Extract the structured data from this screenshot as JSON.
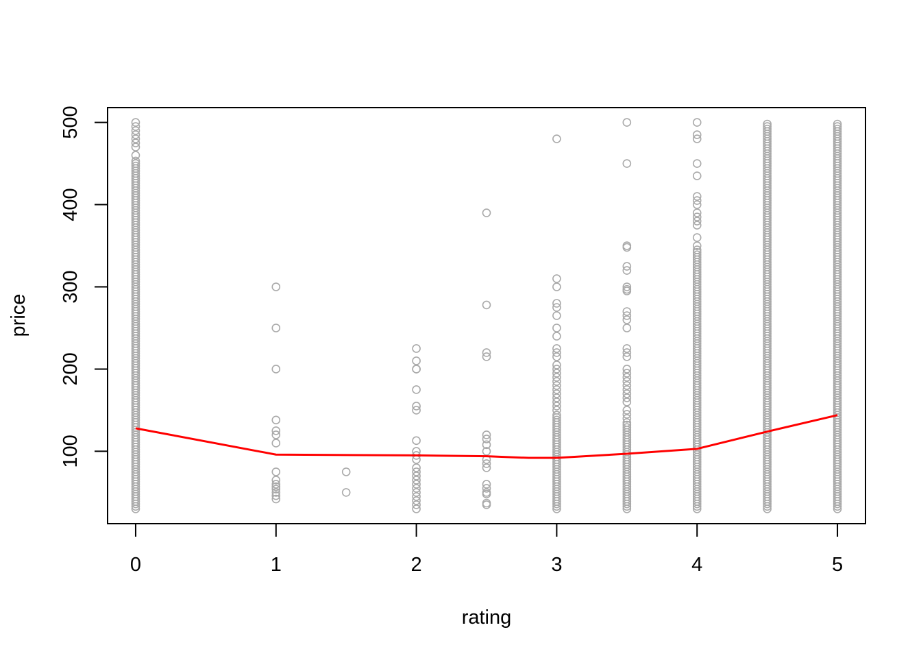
{
  "chart_data": {
    "type": "scatter",
    "title": "",
    "xlabel": "rating",
    "ylabel": "price",
    "xlim": [
      -0.2,
      5.2
    ],
    "ylim": [
      12,
      518
    ],
    "x_ticks": [
      0,
      1,
      2,
      3,
      4,
      5
    ],
    "y_ticks": [
      100,
      200,
      300,
      400,
      500
    ],
    "x_tick_labels": [
      "0",
      "1",
      "2",
      "3",
      "4",
      "5"
    ],
    "y_tick_labels": [
      "100",
      "200",
      "300",
      "400",
      "500"
    ],
    "grid": false,
    "legend": "none",
    "point_color": "#a9a9a9",
    "line_color": "#ff0000",
    "series": [
      {
        "type": "points",
        "points": [
          {
            "x": 0,
            "dense": [
              30,
              455
            ],
            "y": [
              460,
              470,
              475,
              480,
              485,
              490,
              495,
              500
            ]
          },
          {
            "x": 1,
            "y": [
              300,
              250,
              200,
              138,
              125,
              120,
              110,
              75,
              65,
              60,
              57,
              54,
              50,
              46,
              42
            ]
          },
          {
            "x": 1.5,
            "y": [
              75,
              50
            ]
          },
          {
            "x": 2,
            "y": [
              225,
              210,
              200,
              200,
              175,
              155,
              150,
              113,
              100,
              95,
              90,
              80,
              75,
              70,
              65,
              60,
              55,
              50,
              45,
              40,
              35,
              30
            ]
          },
          {
            "x": 2.5,
            "y": [
              390,
              278,
              220,
              215,
              120,
              115,
              108,
              100,
              90,
              85,
              80,
              60,
              55,
              50,
              48,
              37,
              35
            ]
          },
          {
            "x": 3,
            "dense": [
              30,
              145
            ],
            "y": [
              480,
              310,
              300,
              280,
              275,
              265,
              250,
              240,
              225,
              220,
              215,
              205,
              200,
              195,
              190,
              185,
              180,
              175,
              170,
              165,
              160,
              155,
              150
            ]
          },
          {
            "x": 3.5,
            "dense": [
              30,
              135
            ],
            "y": [
              500,
              450,
              350,
              348,
              325,
              320,
              300,
              297,
              295,
              270,
              265,
              260,
              250,
              225,
              220,
              215,
              200,
              195,
              190,
              185,
              180,
              175,
              170,
              165,
              160,
              150,
              145,
              140
            ]
          },
          {
            "x": 4,
            "dense": [
              30,
              345
            ],
            "y": [
              500,
              485,
              480,
              450,
              435,
              410,
              405,
              400,
              390,
              385,
              380,
              375,
              360,
              350
            ]
          },
          {
            "x": 4.5,
            "dense": [
              30,
              500
            ]
          },
          {
            "x": 5,
            "dense": [
              30,
              500
            ]
          }
        ]
      },
      {
        "type": "line",
        "x": [
          0,
          1,
          2,
          2.5,
          2.8,
          3,
          3.5,
          4,
          4.5,
          5
        ],
        "y": [
          128,
          96,
          95,
          94,
          92,
          92,
          97,
          103,
          124,
          144
        ]
      }
    ]
  }
}
